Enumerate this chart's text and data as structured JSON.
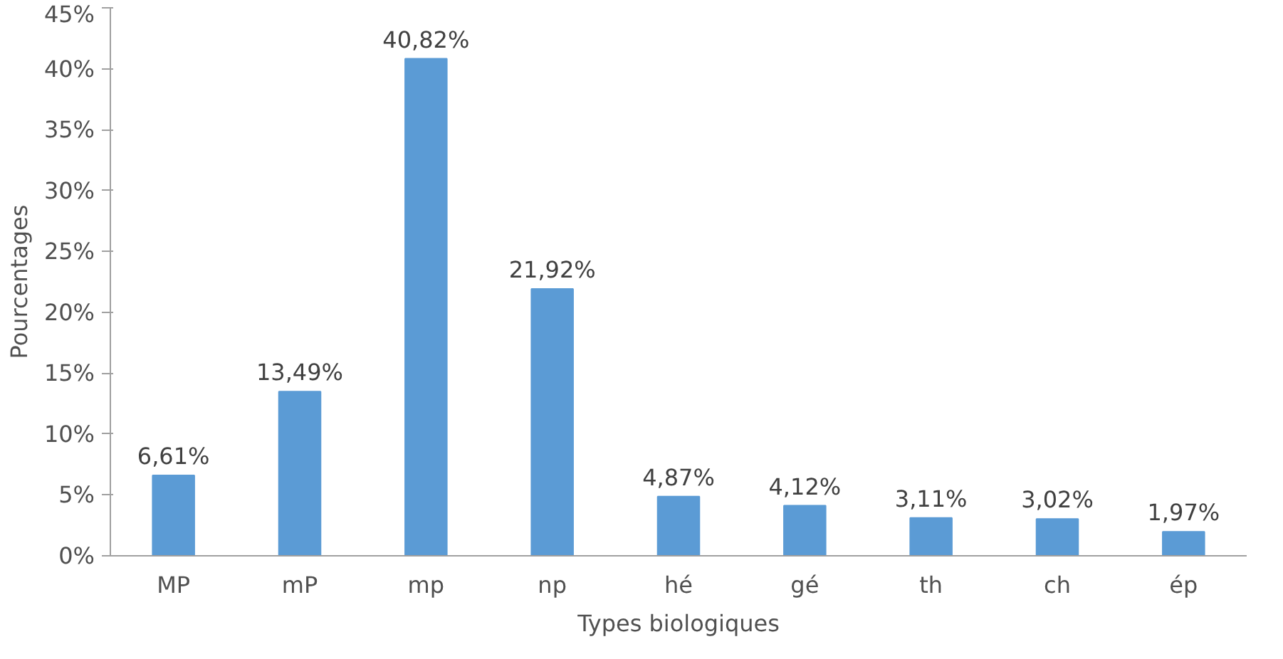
{
  "chart_data": {
    "type": "bar",
    "xlabel": "Types biologiques",
    "ylabel": "Pourcentages",
    "categories": [
      "MP",
      "mP",
      "mp",
      "np",
      "hé",
      "gé",
      "th",
      "ch",
      "ép"
    ],
    "values": [
      6.61,
      13.49,
      40.82,
      21.92,
      4.87,
      4.12,
      3.11,
      3.02,
      1.97
    ],
    "value_labels": [
      "6,61%",
      "13,49%",
      "40,82%",
      "21,92%",
      "4,87%",
      "4,12%",
      "3,11%",
      "3,02%",
      "1,97%"
    ],
    "color": "#5b9bd5",
    "ylim": [
      0,
      45
    ],
    "yticks": [
      {
        "value": 0,
        "label": "0%"
      },
      {
        "value": 5,
        "label": "5%"
      },
      {
        "value": 10,
        "label": "10%"
      },
      {
        "value": 15,
        "label": "15%"
      },
      {
        "value": 20,
        "label": "20%"
      },
      {
        "value": 25,
        "label": "25%"
      },
      {
        "value": 30,
        "label": "30%"
      },
      {
        "value": 35,
        "label": "35%"
      },
      {
        "value": 40,
        "label": "40%"
      },
      {
        "value": 45,
        "label": "45%"
      }
    ],
    "grid": false
  }
}
